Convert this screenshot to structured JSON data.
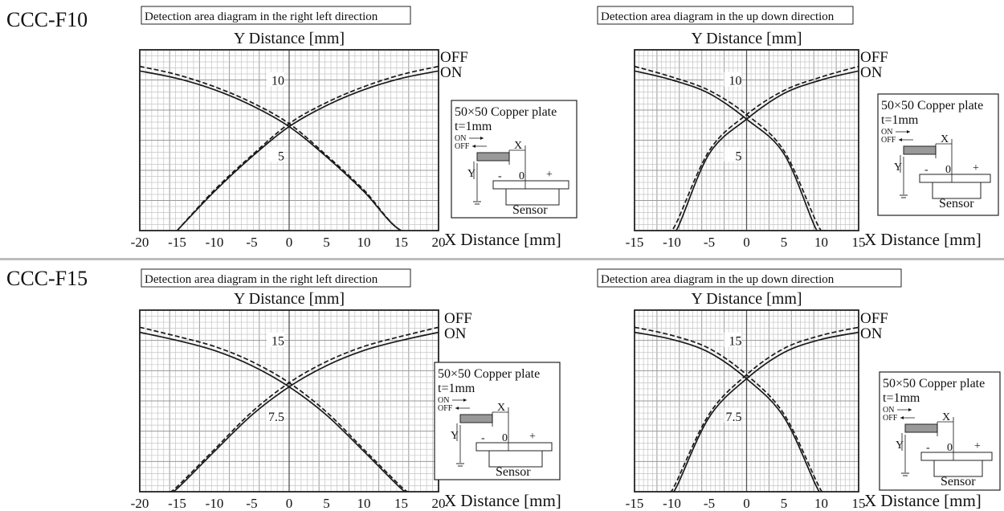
{
  "models": [
    "CCC-F10",
    "CCC-F15"
  ],
  "legend": {
    "off": "OFF",
    "on": "ON"
  },
  "inset": {
    "title": "50×50 Copper plate",
    "thickness": "t=1mm",
    "on": "ON",
    "off": "OFF",
    "x": "X",
    "y": "Y",
    "minus": "-",
    "zero": "0",
    "plus": "+",
    "sensor": "Sensor"
  },
  "chart_data": [
    {
      "type": "line",
      "title": "Detection area diagram in the right left direction",
      "ylabel": "Y Distance [mm]",
      "xlabel": "X Distance [mm]",
      "xticks": [
        -20,
        -15,
        -10,
        -5,
        0,
        5,
        10,
        15,
        20
      ],
      "ylabels": [
        {
          "value": 10,
          "label": "10"
        },
        {
          "value": 5,
          "label": "5"
        }
      ],
      "xlim": [
        -20,
        20
      ],
      "ylim": [
        0,
        12
      ],
      "grid": true,
      "series": [
        {
          "name": "OFF",
          "dashed": true,
          "x": [
            -20,
            -15,
            -10,
            -5,
            0,
            5,
            10,
            15,
            20
          ],
          "y": [
            10.9,
            10.35,
            9.55,
            8.5,
            7.1,
            5.0,
            2.7,
            0.0,
            0
          ]
        },
        {
          "name": "ON",
          "dashed": false,
          "x": [
            -20,
            -15,
            -10,
            -5,
            0,
            5,
            10,
            15,
            20
          ],
          "y": [
            10.6,
            10.1,
            9.35,
            8.3,
            6.9,
            4.9,
            2.6,
            0.0,
            0
          ]
        },
        {
          "name": "OFF",
          "dashed": true,
          "x": [
            -15,
            -10,
            -5,
            0,
            5,
            10,
            15,
            20
          ],
          "y": [
            0.0,
            2.7,
            5.0,
            7.1,
            8.5,
            9.55,
            10.35,
            10.9
          ]
        },
        {
          "name": "ON",
          "dashed": false,
          "x": [
            -15,
            -10,
            -5,
            0,
            5,
            10,
            15,
            20
          ],
          "y": [
            0.0,
            2.6,
            4.9,
            6.9,
            8.3,
            9.35,
            10.1,
            10.6
          ]
        }
      ]
    },
    {
      "type": "line",
      "title": "Detection area diagram in the up down direction",
      "ylabel": "Y Distance [mm]",
      "xlabel": "X Distance [mm]",
      "xticks": [
        -15,
        -10,
        -5,
        0,
        5,
        10,
        15
      ],
      "ylabels": [
        {
          "value": 10,
          "label": "10"
        },
        {
          "value": 5,
          "label": "5"
        }
      ],
      "xlim": [
        -15,
        15
      ],
      "ylim": [
        0,
        12
      ],
      "grid": true,
      "series": [
        {
          "name": "OFF",
          "dashed": true,
          "x": [
            -15,
            -10,
            -5,
            0,
            5,
            9.5,
            10.5
          ],
          "y": [
            10.9,
            10.2,
            9.3,
            7.7,
            5.3,
            0.4,
            0
          ]
        },
        {
          "name": "ON",
          "dashed": false,
          "x": [
            -15,
            -10,
            -5,
            0,
            5,
            9.2,
            10.2
          ],
          "y": [
            10.6,
            10.0,
            9.1,
            7.4,
            5.1,
            0.2,
            0
          ]
        },
        {
          "name": "OFF",
          "dashed": true,
          "x": [
            -10.5,
            -9.5,
            -5,
            0,
            5,
            10,
            15
          ],
          "y": [
            0,
            0.4,
            5.3,
            7.7,
            9.3,
            10.2,
            10.9
          ]
        },
        {
          "name": "ON",
          "dashed": false,
          "x": [
            -10.2,
            -9.2,
            -5,
            0,
            5,
            10,
            15
          ],
          "y": [
            0,
            0.2,
            5.1,
            7.4,
            9.1,
            10.0,
            10.6
          ]
        }
      ]
    },
    {
      "type": "line",
      "title": "Detection area diagram in the right left direction",
      "ylabel": "Y Distance [mm]",
      "xlabel": "X Distance [mm]",
      "xticks": [
        -20,
        -15,
        -10,
        -5,
        0,
        5,
        10,
        15,
        20
      ],
      "ylabels": [
        {
          "value": 15,
          "label": "15"
        },
        {
          "value": 7.5,
          "label": "7.5"
        }
      ],
      "xlim": [
        -20,
        20
      ],
      "ylim": [
        0,
        18
      ],
      "grid": true,
      "series": [
        {
          "name": "OFF",
          "dashed": true,
          "x": [
            -20,
            -15,
            -10,
            -5,
            0,
            5,
            10,
            15,
            16
          ],
          "y": [
            16.3,
            15.4,
            14.4,
            12.9,
            10.8,
            7.9,
            4.2,
            0.5,
            0
          ]
        },
        {
          "name": "ON",
          "dashed": false,
          "x": [
            -20,
            -15,
            -10,
            -5,
            0,
            5,
            10,
            15,
            16
          ],
          "y": [
            15.8,
            15.0,
            14.0,
            12.5,
            10.4,
            7.6,
            4.0,
            0.3,
            0
          ]
        },
        {
          "name": "OFF",
          "dashed": true,
          "x": [
            -16,
            -15,
            -10,
            -5,
            0,
            5,
            10,
            15,
            20
          ],
          "y": [
            0,
            0.5,
            4.2,
            7.9,
            10.8,
            12.9,
            14.4,
            15.4,
            16.3
          ]
        },
        {
          "name": "ON",
          "dashed": false,
          "x": [
            -16,
            -15,
            -10,
            -5,
            0,
            5,
            10,
            15,
            20
          ],
          "y": [
            0,
            0.3,
            4.0,
            7.6,
            10.4,
            12.5,
            14.0,
            15.0,
            15.8
          ]
        }
      ]
    },
    {
      "type": "line",
      "title": "Detection area diagram in the up down direction",
      "ylabel": "Y Distance [mm]",
      "xlabel": "X Distance [mm]",
      "xticks": [
        -15,
        -10,
        -5,
        0,
        5,
        10,
        15
      ],
      "ylabels": [
        {
          "value": 15,
          "label": "15"
        },
        {
          "value": 7.5,
          "label": "7.5"
        }
      ],
      "xlim": [
        -15,
        15
      ],
      "ylim": [
        0,
        18
      ],
      "grid": true,
      "series": [
        {
          "name": "OFF",
          "dashed": true,
          "x": [
            -15,
            -10,
            -5,
            0,
            5,
            9.5,
            10.2
          ],
          "y": [
            16.3,
            15.5,
            14.2,
            11.6,
            7.7,
            0.8,
            0
          ]
        },
        {
          "name": "ON",
          "dashed": false,
          "x": [
            -15,
            -10,
            -5,
            0,
            5,
            9.3,
            10.0
          ],
          "y": [
            15.8,
            15.1,
            13.8,
            11.2,
            7.4,
            0.6,
            0
          ]
        },
        {
          "name": "OFF",
          "dashed": true,
          "x": [
            -10.2,
            -9.5,
            -5,
            0,
            5,
            10,
            15
          ],
          "y": [
            0,
            0.8,
            7.7,
            11.6,
            14.2,
            15.5,
            16.3
          ]
        },
        {
          "name": "ON",
          "dashed": false,
          "x": [
            -10.0,
            -9.3,
            -5,
            0,
            5,
            10,
            15
          ],
          "y": [
            0,
            0.6,
            7.4,
            11.2,
            13.8,
            15.1,
            15.8
          ]
        }
      ]
    }
  ]
}
